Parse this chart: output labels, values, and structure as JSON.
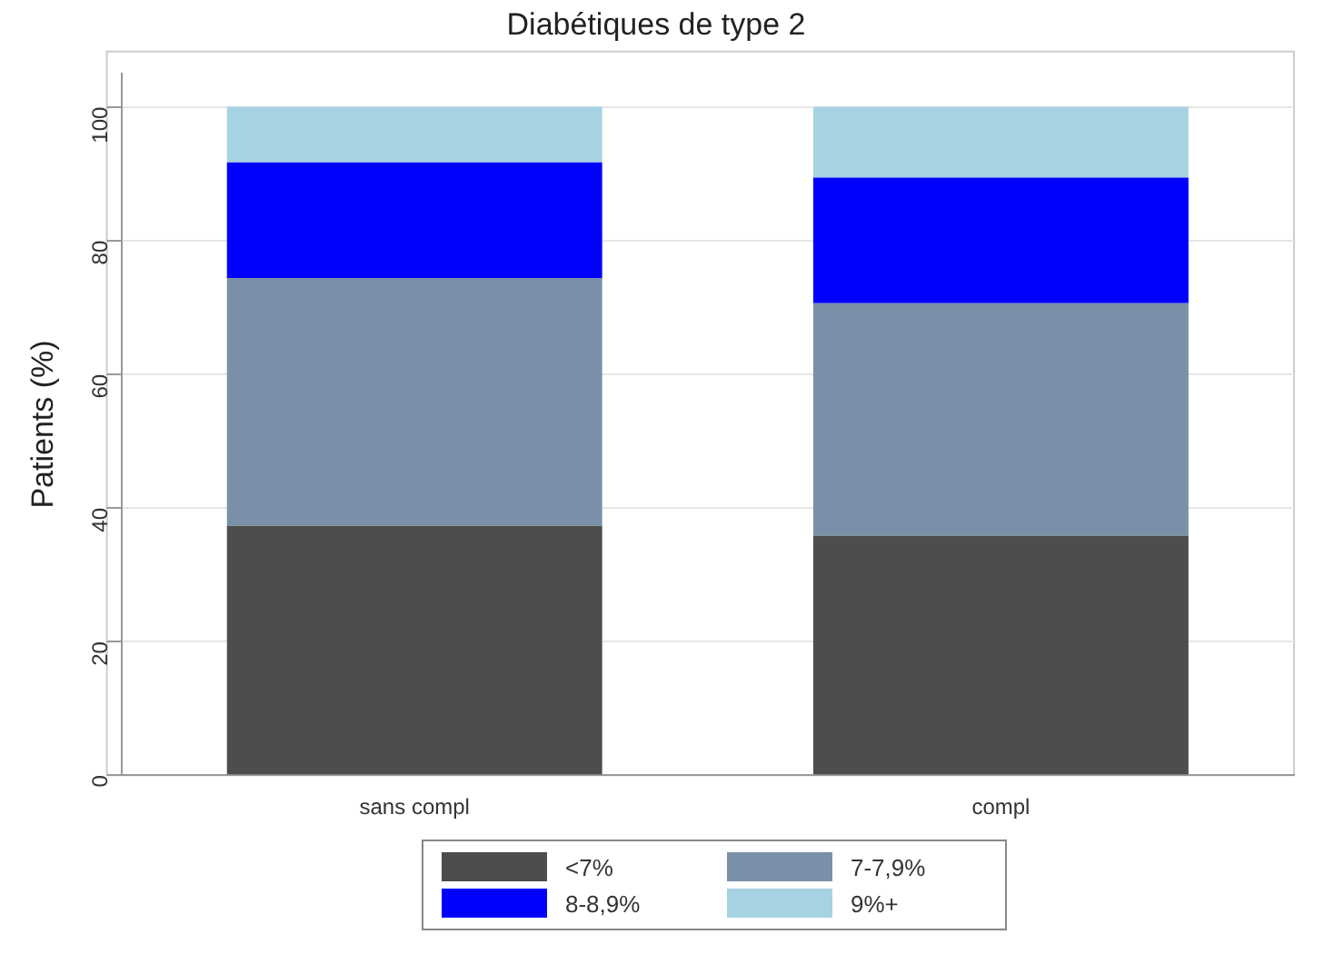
{
  "chart_data": {
    "type": "bar",
    "title": "Diabétiques de type 2",
    "ylabel": "Patients (%)",
    "categories": [
      "sans compl",
      "compl"
    ],
    "stacked": true,
    "series": [
      {
        "name": "<7%",
        "color": "#4d4d4d",
        "values": [
          37.3,
          35.8
        ]
      },
      {
        "name": "7-7,9%",
        "color": "#7a90a8",
        "values": [
          37.1,
          34.8
        ]
      },
      {
        "name": "8-8,9%",
        "color": "#0000ff",
        "values": [
          17.3,
          18.8
        ]
      },
      {
        "name": "9%+",
        "color": "#a6d3e1",
        "values": [
          8.3,
          10.6
        ]
      }
    ],
    "ylim": [
      0,
      105
    ],
    "yticks": [
      0,
      20,
      40,
      60,
      80,
      100
    ],
    "grid": "y",
    "legend": "bottom"
  }
}
